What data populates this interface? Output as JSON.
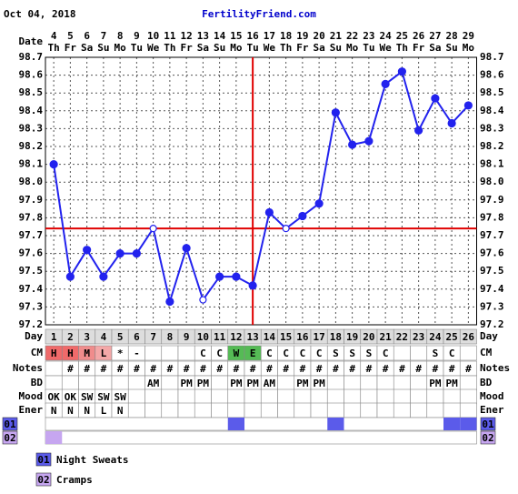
{
  "header": {
    "date": "Oct 04, 2018",
    "site": "FertilityFriend.com"
  },
  "chart_data": {
    "type": "line",
    "date_label": "Date",
    "categories": [
      "4",
      "5",
      "6",
      "7",
      "8",
      "9",
      "10",
      "11",
      "12",
      "13",
      "14",
      "15",
      "16",
      "17",
      "18",
      "19",
      "20",
      "21",
      "22",
      "23",
      "24",
      "25",
      "26",
      "27",
      "28",
      "29"
    ],
    "weekdays": [
      "Th",
      "Fr",
      "Sa",
      "Su",
      "Mo",
      "Tu",
      "We",
      "Th",
      "Fr",
      "Sa",
      "Su",
      "Mo",
      "Tu",
      "We",
      "Th",
      "Fr",
      "Sa",
      "Su",
      "Mo",
      "Tu",
      "We",
      "Th",
      "Fr",
      "Sa",
      "Su",
      "Mo"
    ],
    "series": [
      {
        "color": "#2222ee",
        "values": [
          98.1,
          97.47,
          97.62,
          97.47,
          97.6,
          97.6,
          97.74,
          97.33,
          97.63,
          97.34,
          97.47,
          97.47,
          97.42,
          97.83,
          97.74,
          97.81,
          97.88,
          98.39,
          98.21,
          98.23,
          98.55,
          98.62,
          98.29,
          98.47,
          98.33,
          98.43
        ],
        "marker_style": [
          "filled",
          "filled",
          "filled",
          "filled",
          "filled",
          "filled",
          "open",
          "filled",
          "filled",
          "open",
          "filled",
          "filled",
          "filled",
          "filled",
          "open",
          "filled",
          "filled",
          "filled",
          "filled",
          "filled",
          "filled",
          "filled",
          "filled",
          "filled",
          "filled",
          "filled"
        ]
      }
    ],
    "ylim": [
      97.2,
      98.7
    ],
    "yticks": [
      97.2,
      97.3,
      97.4,
      97.5,
      97.6,
      97.7,
      97.8,
      97.9,
      {
        "value": 98,
        "label": "98.0"
      },
      98.1,
      98.2,
      98.3,
      98.4,
      98.5,
      98.6,
      98.7
    ],
    "grid": true,
    "coverline": 97.74,
    "ovulation_day": 16,
    "marker_color": "#e00000",
    "rows": [
      {
        "label": "Day",
        "background": "#dddddd",
        "cells": [
          1,
          2,
          3,
          4,
          5,
          6,
          7,
          8,
          9,
          10,
          11,
          12,
          13,
          14,
          15,
          16,
          17,
          18,
          19,
          20,
          21,
          22,
          23,
          24,
          25,
          26
        ]
      },
      {
        "label": "CM",
        "cells": [
          "H",
          "H",
          "M",
          "L",
          "*",
          "-",
          null,
          null,
          null,
          "C",
          "C",
          "W",
          "E",
          "C",
          "C",
          "C",
          "C",
          "S",
          "S",
          "S",
          "C",
          null,
          null,
          "S",
          "C",
          null
        ],
        "cell_colors": [
          "#f06a6a",
          "#f06a6a",
          "#f08c8c",
          "#f4a8a8",
          null,
          null,
          null,
          null,
          null,
          null,
          null,
          "#55bb55",
          "#55bb55",
          null,
          null,
          null,
          null,
          null,
          null,
          null,
          null,
          null,
          null,
          null,
          null,
          null
        ]
      },
      {
        "label": "Notes",
        "cells": [
          null,
          "#",
          "#",
          "#",
          "#",
          "#",
          "#",
          "#",
          "#",
          "#",
          "#",
          "#",
          "#",
          "#",
          "#",
          "#",
          "#",
          "#",
          "#",
          "#",
          "#",
          "#",
          "#",
          "#",
          "#",
          "#"
        ]
      },
      {
        "label": "BD",
        "cells": [
          null,
          null,
          null,
          null,
          null,
          null,
          "AM",
          null,
          "PM",
          "PM",
          null,
          "PM",
          "PM",
          "AM",
          null,
          "PM",
          "PM",
          null,
          null,
          null,
          null,
          null,
          null,
          "PM",
          "PM",
          null
        ]
      },
      {
        "label": "Mood",
        "cells": [
          "OK",
          "OK",
          "SW",
          "SW",
          "SW",
          null,
          null,
          null,
          null,
          null,
          null,
          null,
          null,
          null,
          null,
          null,
          null,
          null,
          null,
          null,
          null,
          null,
          null,
          null,
          null,
          null
        ]
      },
      {
        "label": "Ener",
        "cells": [
          "N",
          "N",
          "N",
          "L",
          "N",
          null,
          null,
          null,
          null,
          null,
          null,
          null,
          null,
          null,
          null,
          null,
          null,
          null,
          null,
          null,
          null,
          null,
          null,
          null,
          null,
          null
        ]
      }
    ],
    "symptoms": [
      {
        "code": "01",
        "name": "Night Sweats",
        "color": "#5b5bea",
        "days": [
          12,
          18,
          25,
          26
        ]
      },
      {
        "code": "02",
        "name": "Cramps",
        "color": "#c6a6f0",
        "days": [
          1
        ]
      }
    ]
  }
}
